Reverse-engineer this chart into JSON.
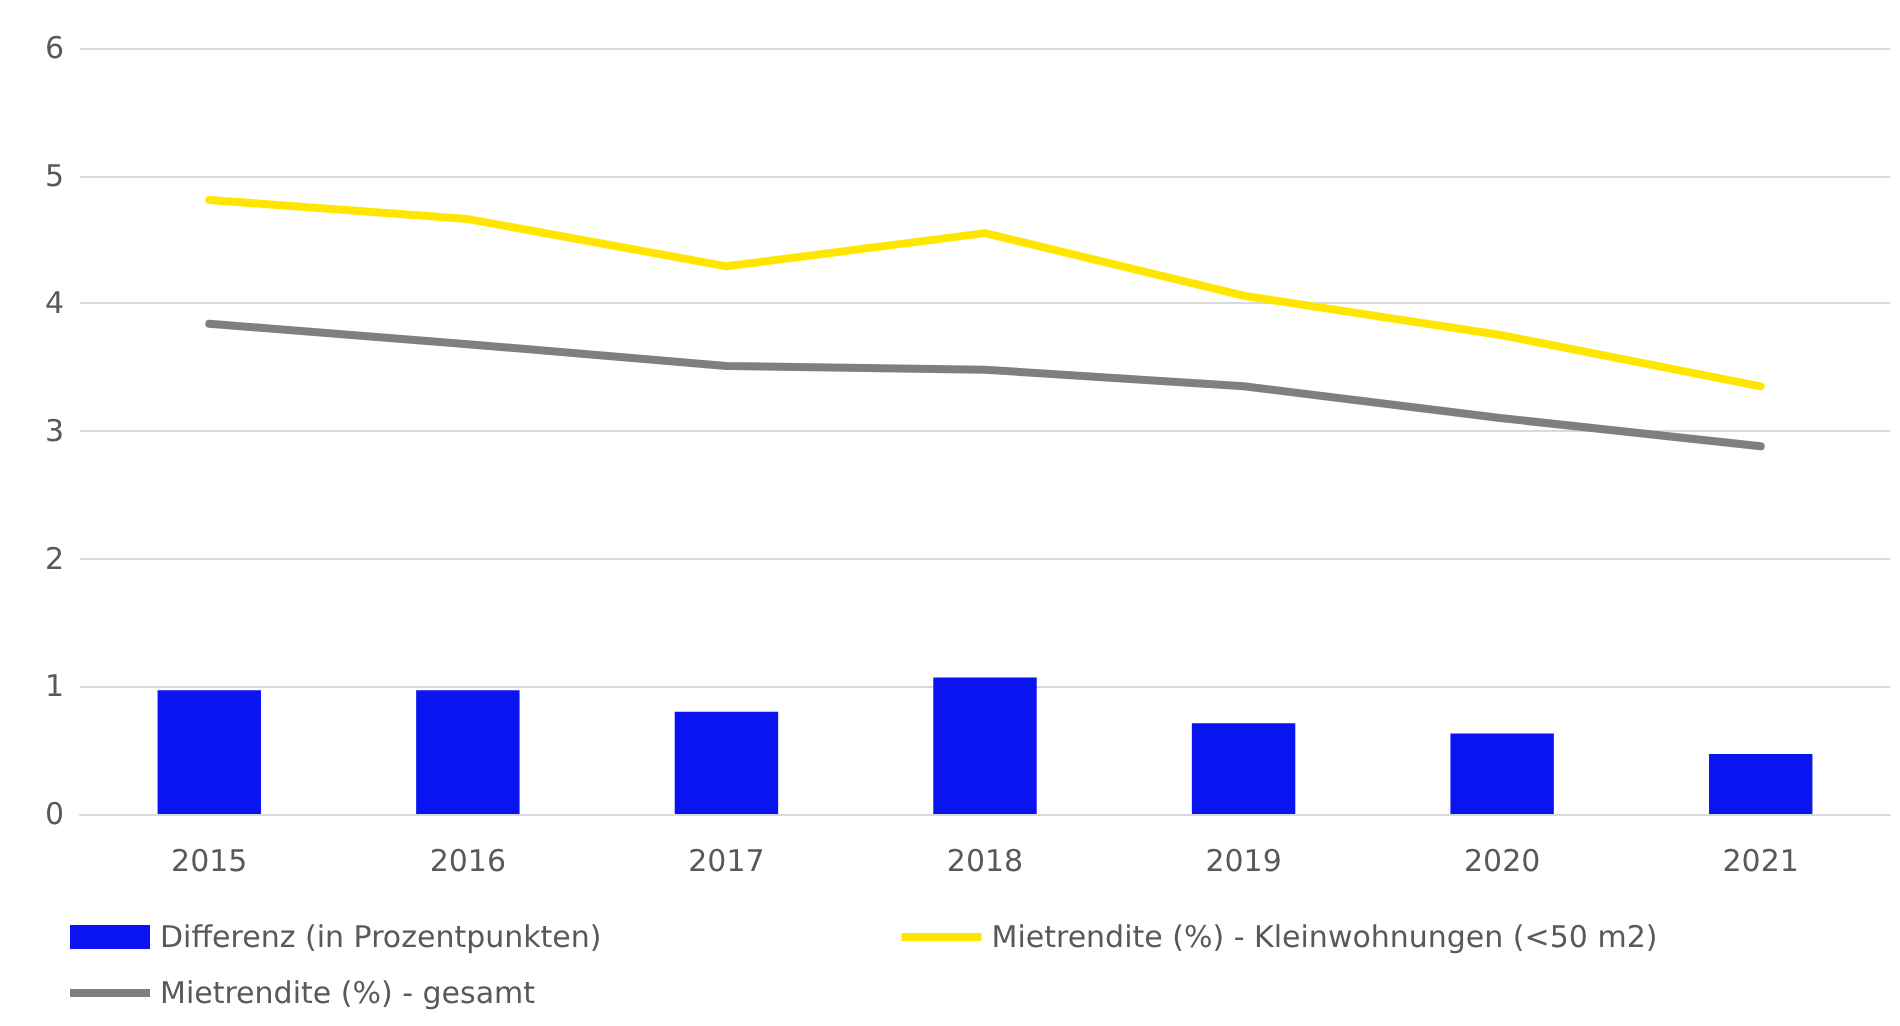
{
  "chart_data": {
    "type": "bar",
    "categories": [
      "2015",
      "2016",
      "2017",
      "2018",
      "2019",
      "2020",
      "2021"
    ],
    "series": [
      {
        "name": "Differenz (in Prozentpunkten)",
        "color": "#0a14f0",
        "values": [
          0.97,
          0.97,
          0.8,
          1.07,
          0.71,
          0.63,
          0.47
        ]
      },
      {
        "name": "Mietrendite (%) - Kleinwohnungen (<50 m2)",
        "type": "line",
        "color": "#ffe600",
        "values": [
          4.81,
          4.66,
          4.29,
          4.55,
          4.06,
          3.75,
          3.35
        ]
      },
      {
        "name": "Mietrendite (%) - gesamt",
        "type": "line",
        "color": "#7f7f7f",
        "values": [
          3.84,
          3.68,
          3.51,
          3.48,
          3.35,
          3.1,
          2.88
        ]
      }
    ],
    "ylim": [
      0,
      6
    ],
    "yticks": [
      0,
      1,
      2,
      3,
      4,
      5,
      6
    ],
    "grid": "y",
    "legend": "bottom",
    "marker": "none",
    "line_style": "solid"
  }
}
